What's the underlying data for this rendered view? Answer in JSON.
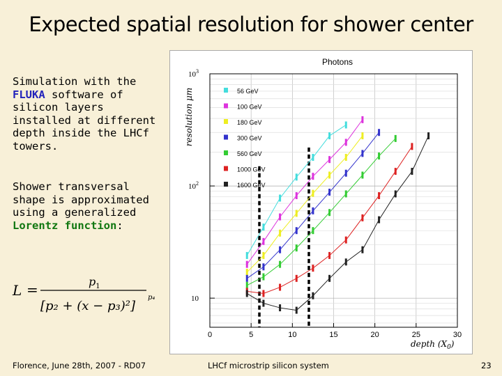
{
  "slide": {
    "title": "Expected spatial resolution for shower center",
    "paragraph1": {
      "before": "Simulation with the",
      "highlight": "FLUKA",
      "after": "software of silicon layers installed at different depth inside the LHCf towers."
    },
    "paragraph2": {
      "before": "Shower transversal shape is approximated using a generalized",
      "highlight": "Lorentz function",
      "after": ":"
    },
    "formula": {
      "lhs": "L",
      "numerator": "p",
      "numerator_sub": "1",
      "denominator": "[p₂ + (x − p₃)²]",
      "exponent": "p₄"
    }
  },
  "footer": {
    "left": "Florence, June 28th, 2007 - RD07",
    "center": "LHCf microstrip silicon system",
    "page": "23"
  },
  "chart_data": {
    "type": "line",
    "title": "Photons",
    "xlabel": "depth (X",
    "xlabel_sub": "0",
    "xlabel_close": ")",
    "ylabel": "resolution μm",
    "xlim": [
      0,
      30
    ],
    "ylim": [
      5.5,
      1000
    ],
    "yscale": "log",
    "xticks": [
      0,
      5,
      10,
      15,
      20,
      25,
      30
    ],
    "yticks": [
      {
        "value": 10,
        "base": "10",
        "exp": ""
      },
      {
        "value": 100,
        "base": "10",
        "exp": "2"
      },
      {
        "value": 1000,
        "base": "10",
        "exp": "3"
      }
    ],
    "grid": true,
    "legend_position": "top-left",
    "series": [
      {
        "name": "56 GeV",
        "color": "#44dddd",
        "x": [
          4.5,
          6.5,
          8.5,
          10.5,
          12.5,
          14.5,
          16.5
        ],
        "y": [
          24,
          43,
          78,
          120,
          180,
          280,
          350
        ]
      },
      {
        "name": "100 GeV",
        "color": "#dd33dd",
        "x": [
          4.5,
          6.5,
          8.5,
          10.5,
          12.5,
          14.5,
          16.5,
          18.5
        ],
        "y": [
          20,
          32,
          53,
          82,
          122,
          172,
          245,
          390
        ]
      },
      {
        "name": "180 GeV",
        "color": "#eeee22",
        "x": [
          4.5,
          6.5,
          8.5,
          10.5,
          12.5,
          14.5,
          16.5,
          18.5
        ],
        "y": [
          17,
          24,
          38,
          57,
          86,
          125,
          180,
          280
        ]
      },
      {
        "name": "300 GeV",
        "color": "#3333cc",
        "x": [
          4.5,
          6.5,
          8.5,
          10.5,
          12.5,
          14.5,
          16.5,
          18.5,
          20.5
        ],
        "y": [
          15,
          19,
          27,
          40,
          60,
          88,
          130,
          195,
          300
        ]
      },
      {
        "name": "560 GeV",
        "color": "#33cc33",
        "x": [
          4.5,
          6.5,
          8.5,
          10.5,
          12.5,
          14.5,
          16.5,
          18.5,
          20.5,
          22.5
        ],
        "y": [
          13,
          15.5,
          20,
          28,
          40,
          58,
          85,
          125,
          185,
          265
        ]
      },
      {
        "name": "1000 GeV",
        "color": "#dd2222",
        "x": [
          4.5,
          6.5,
          8.5,
          10.5,
          12.5,
          14.5,
          16.5,
          18.5,
          20.5,
          22.5,
          24.5
        ],
        "y": [
          11.5,
          11,
          12.5,
          15,
          18.5,
          24,
          33,
          52,
          82,
          135,
          225
        ]
      },
      {
        "name": "1600 GeV",
        "color": "#222222",
        "x": [
          4.5,
          6.5,
          8.5,
          10.5,
          12.5,
          14.5,
          16.5,
          18.5,
          20.5,
          22.5,
          24.5,
          26.5
        ],
        "y": [
          11,
          9,
          8.2,
          7.8,
          10.5,
          15,
          21,
          27,
          50,
          85,
          135,
          280
        ]
      }
    ],
    "markers": [
      {
        "x": 6.0,
        "y_from": 5.5,
        "y_to": 150
      },
      {
        "x": 12.0,
        "y_from": 5.5,
        "y_to": 220
      }
    ]
  }
}
